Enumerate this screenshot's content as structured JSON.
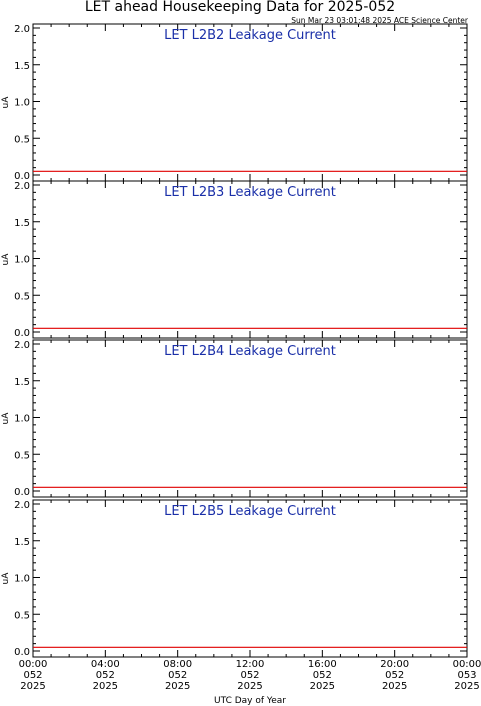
{
  "title": "LET ahead Housekeeping Data for 2025-052",
  "timestamp": "Sun Mar 23 03:01:48 2025 ACE Science Center",
  "xlabel": "UTC Day of Year",
  "colors": {
    "series": "#e00000",
    "panel_title": "#1a2fa8",
    "axes": "#000000"
  },
  "chart_data": [
    {
      "type": "line",
      "title": "LET L2B2 Leakage Current",
      "ylabel": "uA",
      "ylim": [
        0,
        2.0
      ],
      "yticks": [
        "0.0",
        "0.5",
        "1.0",
        "1.5",
        "2.0"
      ],
      "xlim": [
        0,
        24
      ],
      "x": [
        0,
        24
      ],
      "series": [
        {
          "values": [
            0.05,
            0.05
          ]
        }
      ]
    },
    {
      "type": "line",
      "title": "LET L2B3 Leakage Current",
      "ylabel": "uA",
      "ylim": [
        0,
        2.0
      ],
      "yticks": [
        "0.0",
        "0.5",
        "1.0",
        "1.5",
        "2.0"
      ],
      "xlim": [
        0,
        24
      ],
      "x": [
        0,
        24
      ],
      "series": [
        {
          "values": [
            0.05,
            0.05
          ]
        }
      ]
    },
    {
      "type": "line",
      "title": "LET L2B4 Leakage Current",
      "ylabel": "uA",
      "ylim": [
        0,
        2.0
      ],
      "yticks": [
        "0.0",
        "0.5",
        "1.0",
        "1.5",
        "2.0"
      ],
      "xlim": [
        0,
        24
      ],
      "x": [
        0,
        24
      ],
      "series": [
        {
          "values": [
            0.05,
            0.05
          ]
        }
      ]
    },
    {
      "type": "line",
      "title": "LET L2B5 Leakage Current",
      "ylabel": "uA",
      "ylim": [
        0,
        2.0
      ],
      "yticks": [
        "0.0",
        "0.5",
        "1.0",
        "1.5",
        "2.0"
      ],
      "xlim": [
        0,
        24
      ],
      "x": [
        0,
        24
      ],
      "series": [
        {
          "values": [
            0.05,
            0.05
          ]
        }
      ]
    }
  ],
  "xticks": [
    {
      "time": "00:00",
      "doy": "052",
      "year": "2025"
    },
    {
      "time": "04:00",
      "doy": "052",
      "year": "2025"
    },
    {
      "time": "08:00",
      "doy": "052",
      "year": "2025"
    },
    {
      "time": "12:00",
      "doy": "052",
      "year": "2025"
    },
    {
      "time": "16:00",
      "doy": "052",
      "year": "2025"
    },
    {
      "time": "20:00",
      "doy": "052",
      "year": "2025"
    },
    {
      "time": "00:00",
      "doy": "053",
      "year": "2025"
    }
  ]
}
